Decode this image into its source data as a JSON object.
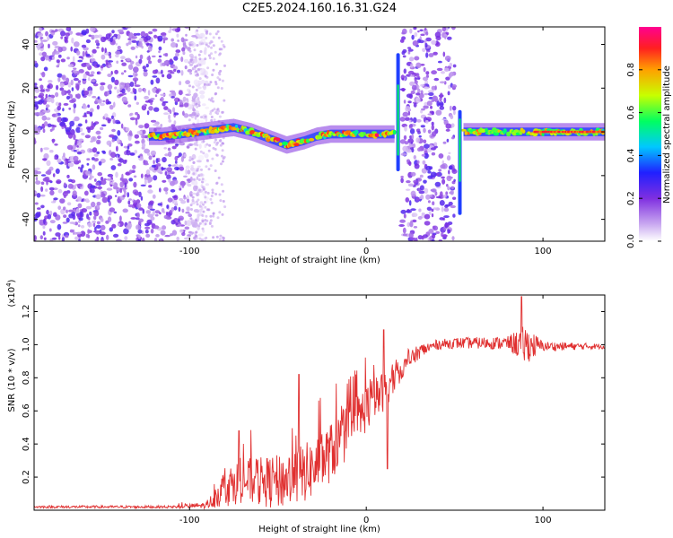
{
  "title": "C2E5.2024.160.16.31.G24",
  "chart_data": [
    {
      "type": "heatmap",
      "xlabel": "Height of straight line (km)",
      "ylabel": "Frequency (Hz)",
      "xlim": [
        -188,
        135
      ],
      "ylim": [
        -50,
        48
      ],
      "x_ticks": [
        -100,
        0,
        100
      ],
      "x_tick_labels": [
        "-100",
        "0",
        "100"
      ],
      "y_ticks": [
        -40,
        -20,
        0,
        20,
        40
      ],
      "y_tick_labels": [
        "-40",
        "-20",
        "0",
        "20",
        "40"
      ],
      "colorbar": {
        "label": "Normalized spectral amplitude",
        "range": [
          0,
          1
        ],
        "ticks": [
          0.0,
          0.2,
          0.4,
          0.6,
          0.8
        ],
        "tick_labels": [
          "0.0",
          "0.2",
          "0.4",
          "0.6",
          "0.8"
        ],
        "colors": [
          "#ffffff",
          "#c9a8f0",
          "#7f2fe0",
          "#2020ff",
          "#00c8ff",
          "#00ff60",
          "#c8ff00",
          "#ffa000",
          "#ff2020",
          "#ff0090"
        ]
      },
      "regions": [
        {
          "x_range": [
            -188,
            -90
          ],
          "kind": "broadband-noise",
          "fade_to": -90
        },
        {
          "x_range": [
            20,
            50
          ],
          "kind": "broadband-noise"
        }
      ],
      "ridge": {
        "x": [
          -123,
          -115,
          -105,
          -95,
          -85,
          -75,
          -65,
          -55,
          -45,
          -35,
          -28,
          -20,
          -10,
          0,
          10,
          16
        ],
        "y": [
          -2,
          -2,
          -1,
          0,
          1,
          2,
          0,
          -3,
          -6,
          -4,
          -2,
          -1,
          -1,
          -1,
          -1,
          -1
        ]
      },
      "ridge2": {
        "x": [
          55,
          70,
          85,
          100,
          115,
          135
        ],
        "y": [
          0,
          0,
          0,
          0,
          0,
          0
        ]
      },
      "spikes": [
        {
          "x": 18,
          "y_range": [
            -18,
            36
          ]
        },
        {
          "x": 53,
          "y_range": [
            -38,
            10
          ]
        }
      ]
    },
    {
      "type": "line",
      "xlabel": "Height of straight line (km)",
      "ylabel": "SNR (10 * v/v)",
      "y_multiplier": "(x10^4)",
      "xlim": [
        -188,
        135
      ],
      "ylim": [
        0,
        1.3
      ],
      "x_ticks": [
        -100,
        0,
        100
      ],
      "x_tick_labels": [
        "-100",
        "0",
        "100"
      ],
      "y_ticks": [
        0.2,
        0.4,
        0.6,
        0.8,
        1.0,
        1.2
      ],
      "y_tick_labels": [
        "0.2",
        "0.4",
        "0.6",
        "0.8",
        "1.0",
        "1.2"
      ],
      "color": "#e03030",
      "trend": {
        "x": [
          -188,
          -110,
          -90,
          -80,
          -70,
          -60,
          -50,
          -40,
          -30,
          -20,
          -10,
          0,
          10,
          20,
          30,
          40,
          50,
          60,
          70,
          80,
          90,
          100,
          110,
          120,
          135
        ],
        "y": [
          0.02,
          0.02,
          0.03,
          0.14,
          0.18,
          0.17,
          0.17,
          0.2,
          0.25,
          0.35,
          0.48,
          0.62,
          0.72,
          0.85,
          0.96,
          1.0,
          1.01,
          1.01,
          1.01,
          1.01,
          1.0,
          0.99,
          0.99,
          0.99,
          0.99
        ]
      },
      "noise_amplitude": {
        "x": [
          -188,
          -110,
          -90,
          -80,
          -60,
          -40,
          -20,
          0,
          10,
          20,
          40,
          80,
          90,
          100,
          135
        ],
        "y": [
          0.008,
          0.008,
          0.02,
          0.12,
          0.15,
          0.18,
          0.18,
          0.15,
          0.12,
          0.06,
          0.03,
          0.04,
          0.12,
          0.03,
          0.015
        ]
      },
      "notable_peaks": [
        {
          "x": -72,
          "y": 0.48
        },
        {
          "x": -38,
          "y": 0.82
        },
        {
          "x": 10,
          "y": 1.09
        },
        {
          "x": 12,
          "y": 0.25
        },
        {
          "x": 88,
          "y": 1.29
        }
      ]
    }
  ]
}
